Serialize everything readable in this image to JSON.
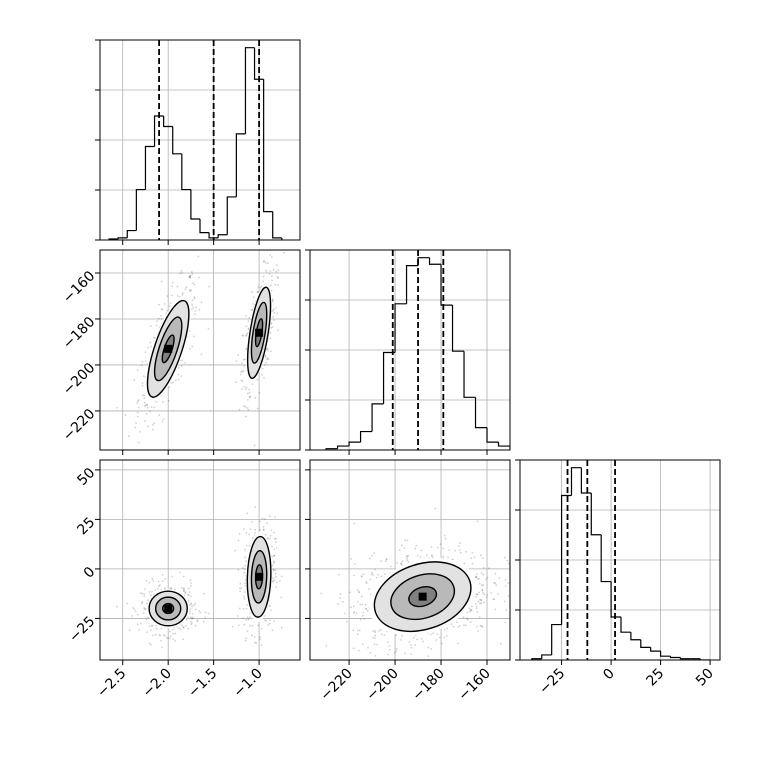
{
  "chart_data": {
    "type": "corner",
    "title": "",
    "parameters": [
      "",
      "",
      ""
    ],
    "grid": true,
    "axes": [
      {
        "range": [
          -2.75,
          -0.55
        ],
        "ticks": [
          -2.5,
          -2.0,
          -1.5,
          -1.0
        ],
        "tick_labels": [
          "−2.5",
          "−2.0",
          "−1.5",
          "−1.0"
        ]
      },
      {
        "range": [
          -237,
          -150
        ],
        "ticks": [
          -220,
          -200,
          -180,
          -160
        ],
        "tick_labels": [
          "−220",
          "−200",
          "−180",
          "−160"
        ]
      },
      {
        "range": [
          -46,
          55
        ],
        "ticks": [
          -25,
          0,
          25,
          50
        ],
        "tick_labels": [
          "−25",
          "0",
          "25",
          "50"
        ]
      }
    ],
    "histograms": [
      {
        "param": 0,
        "bin_edges": [
          -2.65,
          -2.55,
          -2.45,
          -2.35,
          -2.25,
          -2.15,
          -2.05,
          -1.95,
          -1.85,
          -1.75,
          -1.65,
          -1.55,
          -1.45,
          -1.35,
          -1.25,
          -1.15,
          -1.05,
          -0.95,
          -0.85,
          -0.75
        ],
        "counts": [
          1,
          2,
          9,
          48,
          89,
          118,
          108,
          82,
          48,
          20,
          7,
          2,
          5,
          41,
          101,
          183,
          153,
          27,
          2
        ],
        "quantile_lines": [
          -2.1,
          -1.5,
          -1.0
        ]
      },
      {
        "param": 1,
        "bin_edges": [
          -230,
          -225,
          -220,
          -215,
          -210,
          -205,
          -200,
          -195,
          -190,
          -185,
          -180,
          -175,
          -170,
          -165,
          -160,
          -155,
          -150,
          -145
        ],
        "counts": [
          1,
          3,
          6,
          14,
          35,
          74,
          111,
          140,
          146,
          141,
          110,
          75,
          40,
          17,
          6,
          3,
          1
        ],
        "quantile_lines": [
          -201,
          -190,
          -179
        ]
      },
      {
        "param": 2,
        "bin_edges": [
          -40,
          -35,
          -30,
          -25,
          -20,
          -15,
          -10,
          -5,
          0,
          5,
          10,
          15,
          20,
          25,
          30,
          35,
          40,
          45,
          50
        ],
        "counts": [
          1,
          4,
          28,
          130,
          152,
          132,
          99,
          62,
          34,
          22,
          16,
          10,
          7,
          3,
          2,
          1,
          1,
          0
        ],
        "quantile_lines": [
          -22,
          -12,
          2
        ]
      }
    ],
    "pairs": [
      {
        "x_param": 0,
        "y_param": 1,
        "clusters": [
          {
            "mean": [
              -2.0,
              -193
            ],
            "sd": [
              0.13,
              12
            ],
            "corr": 0.72,
            "weight": 0.5,
            "levels": [
              0.5,
              1.15,
              1.75
            ]
          },
          {
            "mean": [
              -1.0,
              -186
            ],
            "sd": [
              0.07,
              11
            ],
            "corr": 0.6,
            "weight": 0.5,
            "levels": [
              0.55,
              1.2,
              1.8
            ]
          }
        ]
      },
      {
        "x_param": 0,
        "y_param": 2,
        "clusters": [
          {
            "mean": [
              -2.0,
              -20
            ],
            "sd": [
              0.12,
              5
            ],
            "corr": 0.0,
            "weight": 0.5,
            "levels": [
              0.5,
              1.15,
              1.75
            ]
          },
          {
            "mean": [
              -1.0,
              -4
            ],
            "sd": [
              0.07,
              11
            ],
            "corr": 0.1,
            "weight": 0.5,
            "levels": [
              0.55,
              1.2,
              1.85
            ]
          }
        ]
      },
      {
        "x_param": 1,
        "y_param": 2,
        "clusters": [
          {
            "mean": [
              -188,
              -14
            ],
            "sd": [
              12,
              10
            ],
            "corr": 0.25,
            "weight": 1.0,
            "levels": [
              0.5,
              1.15,
              1.75
            ]
          }
        ]
      }
    ]
  }
}
